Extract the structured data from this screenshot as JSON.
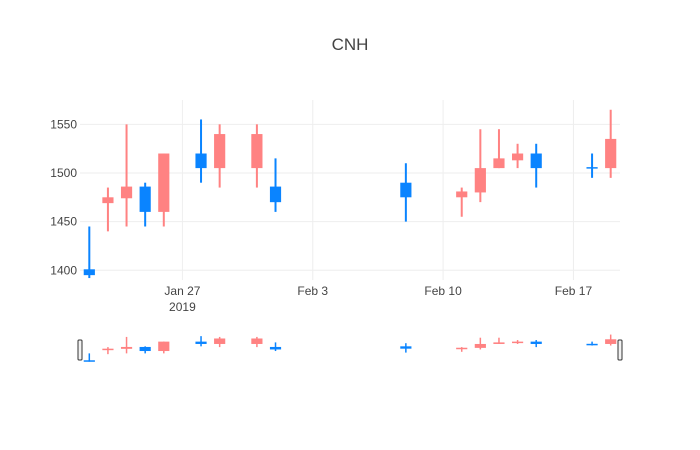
{
  "chart_data": {
    "type": "candlestick",
    "title": "CNH",
    "y_ticks": [
      1400,
      1450,
      1500,
      1550
    ],
    "x_ticks": [
      {
        "date": "2019-01-27",
        "label": "Jan 27",
        "sublabel": "2019"
      },
      {
        "date": "2019-02-03",
        "label": "Feb 3",
        "sublabel": ""
      },
      {
        "date": "2019-02-10",
        "label": "Feb 10",
        "sublabel": ""
      },
      {
        "date": "2019-02-17",
        "label": "Feb 17",
        "sublabel": ""
      }
    ],
    "x_range": [
      "2019-01-22",
      "2019-02-19"
    ],
    "y_range": [
      1390,
      1575
    ],
    "grid": true,
    "increasing_color": "#0a84ff",
    "decreasing_color": "#ff8282",
    "rangeslider": true,
    "candles": [
      {
        "date": "2019-01-22",
        "open": 1395,
        "high": 1445,
        "low": 1392,
        "close": 1401
      },
      {
        "date": "2019-01-23",
        "open": 1475,
        "high": 1485,
        "low": 1440,
        "close": 1469
      },
      {
        "date": "2019-01-24",
        "open": 1486,
        "high": 1550,
        "low": 1445,
        "close": 1474
      },
      {
        "date": "2019-01-25",
        "open": 1460,
        "high": 1490,
        "low": 1445,
        "close": 1486
      },
      {
        "date": "2019-01-26",
        "open": 1520,
        "high": 1520,
        "low": 1445,
        "close": 1460
      },
      {
        "date": "2019-01-28",
        "open": 1505,
        "high": 1555,
        "low": 1490,
        "close": 1520
      },
      {
        "date": "2019-01-29",
        "open": 1540,
        "high": 1550,
        "low": 1485,
        "close": 1505
      },
      {
        "date": "2019-01-31",
        "open": 1540,
        "high": 1550,
        "low": 1485,
        "close": 1505
      },
      {
        "date": "2019-02-01",
        "open": 1470,
        "high": 1515,
        "low": 1460,
        "close": 1486
      },
      {
        "date": "2019-02-08",
        "open": 1475,
        "high": 1510,
        "low": 1450,
        "close": 1490
      },
      {
        "date": "2019-02-11",
        "open": 1481,
        "high": 1485,
        "low": 1455,
        "close": 1475
      },
      {
        "date": "2019-02-12",
        "open": 1505,
        "high": 1545,
        "low": 1470,
        "close": 1480
      },
      {
        "date": "2019-02-13",
        "open": 1515,
        "high": 1545,
        "low": 1505,
        "close": 1505
      },
      {
        "date": "2019-02-14",
        "open": 1520,
        "high": 1530,
        "low": 1505,
        "close": 1513
      },
      {
        "date": "2019-02-15",
        "open": 1505,
        "high": 1530,
        "low": 1485,
        "close": 1520
      },
      {
        "date": "2019-02-18",
        "open": 1505,
        "high": 1520,
        "low": 1495,
        "close": 1506
      },
      {
        "date": "2019-02-19",
        "open": 1535,
        "high": 1565,
        "low": 1495,
        "close": 1505
      }
    ]
  }
}
